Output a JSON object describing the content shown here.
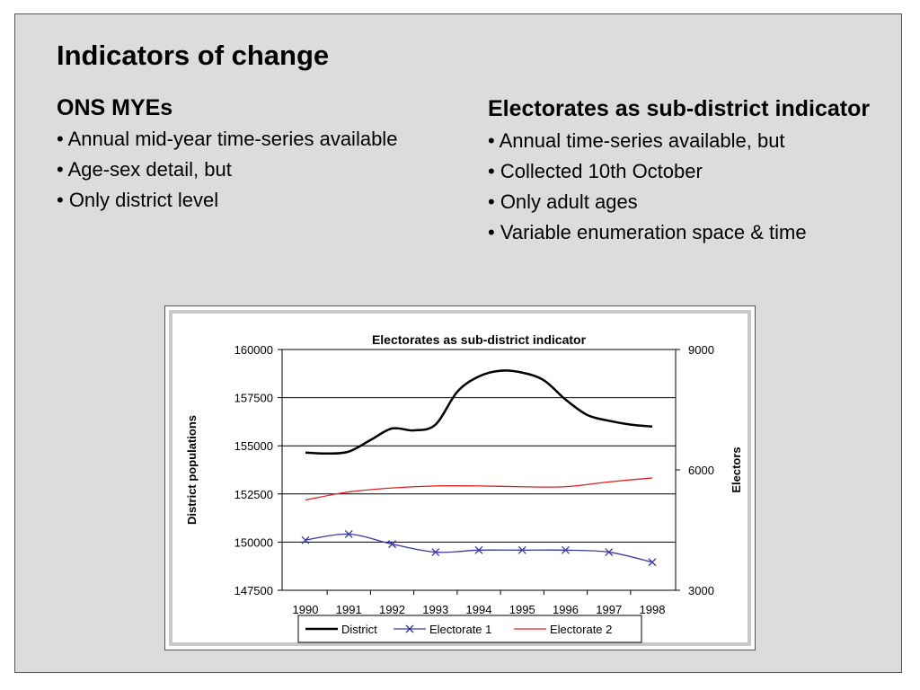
{
  "slide": {
    "title": "Indicators of change",
    "left": {
      "heading": "ONS MYEs",
      "bullets": [
        "• Annual mid-year time-series available",
        "• Age-sex detail, but",
        "• Only district level"
      ]
    },
    "right": {
      "heading": "Electorates as sub-district indicator",
      "bullets": [
        "• Annual time-series available, but",
        "• Collected 10th October",
        "• Only adult ages",
        "• Variable enumeration space & time"
      ]
    }
  },
  "chart_data": {
    "type": "line",
    "title": "Electorates as sub-district indicator",
    "ylabel": "District populations",
    "y2label": "Electors",
    "categories": [
      "1990",
      "1991",
      "1992",
      "1993",
      "1994",
      "1995",
      "1996",
      "1997",
      "1998"
    ],
    "ylim": [
      147500,
      160000
    ],
    "yticks": [
      "160000",
      "157500",
      "155000",
      "152500",
      "150000",
      "147500"
    ],
    "y2lim": [
      3000,
      9000
    ],
    "y2ticks": [
      "9000",
      "6000",
      "3000"
    ],
    "grid": true,
    "legend_position": "bottom",
    "series": [
      {
        "name": "District",
        "axis": "left",
        "color": "#000000",
        "marker": "none",
        "x": [
          1990,
          1990.5,
          1991,
          1991.5,
          1992,
          1992.5,
          1993,
          1993.5,
          1994,
          1994.5,
          1995,
          1995.5,
          1996,
          1996.5,
          1997,
          1997.5,
          1998
        ],
        "values": [
          154650,
          154600,
          154700,
          155300,
          155900,
          155800,
          156100,
          157800,
          158600,
          158900,
          158800,
          158400,
          157400,
          156600,
          156300,
          156100,
          156000
        ]
      },
      {
        "name": "Electorate 1",
        "axis": "right",
        "color": "#3a3aa0",
        "marker": "x",
        "x": [
          1990,
          1991,
          1992,
          1993,
          1994,
          1995,
          1996,
          1997,
          1998
        ],
        "values": [
          4250,
          4400,
          4150,
          3950,
          4000,
          4000,
          4000,
          3950,
          3700
        ]
      },
      {
        "name": "Electorate 2",
        "axis": "right",
        "color": "#e02020",
        "marker": "none",
        "x": [
          1990,
          1991,
          1992,
          1993,
          1994,
          1995,
          1996,
          1997,
          1998
        ],
        "values": [
          5250,
          5450,
          5550,
          5600,
          5600,
          5580,
          5580,
          5700,
          5800
        ]
      }
    ]
  }
}
